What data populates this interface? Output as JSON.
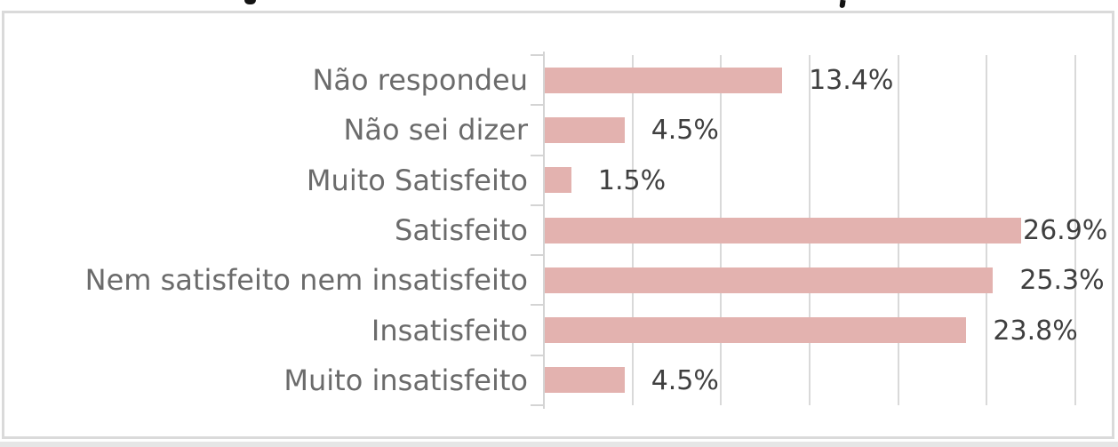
{
  "chart_data": {
    "type": "bar",
    "orientation": "horizontal",
    "title": "",
    "xlabel": "",
    "ylabel": "",
    "categories": [
      "Não respondeu",
      "Não sei dizer",
      "Muito Satisfeito",
      "Satisfeito",
      "Nem satisfeito nem insatisfeito",
      "Insatisfeito",
      "Muito insatisfeito"
    ],
    "values": [
      13.4,
      4.5,
      1.5,
      26.9,
      25.3,
      23.8,
      4.5
    ],
    "data_labels": [
      "13.4%",
      "4.5%",
      "1.5%",
      "26.9%",
      "25.3%",
      "23.8%",
      "4.5%"
    ],
    "xlim": [
      0,
      30
    ],
    "gridline_step_percent": 5,
    "grid": true,
    "value_axis_tick_labels_visible": false,
    "legend": "none",
    "colors": {
      "bar_fill": "#e3b2af",
      "gridline": "#d9d9d9",
      "category_axis": "#d4d4d4",
      "category_label_text": "#6b6b6b",
      "data_label_text": "#3f3f3f",
      "chart_border": "#dadada",
      "background": "#ffffff"
    }
  },
  "decor": {
    "top_fragment_left": "g-descender-mark",
    "top_fragment_right": "comma-descender-mark"
  }
}
